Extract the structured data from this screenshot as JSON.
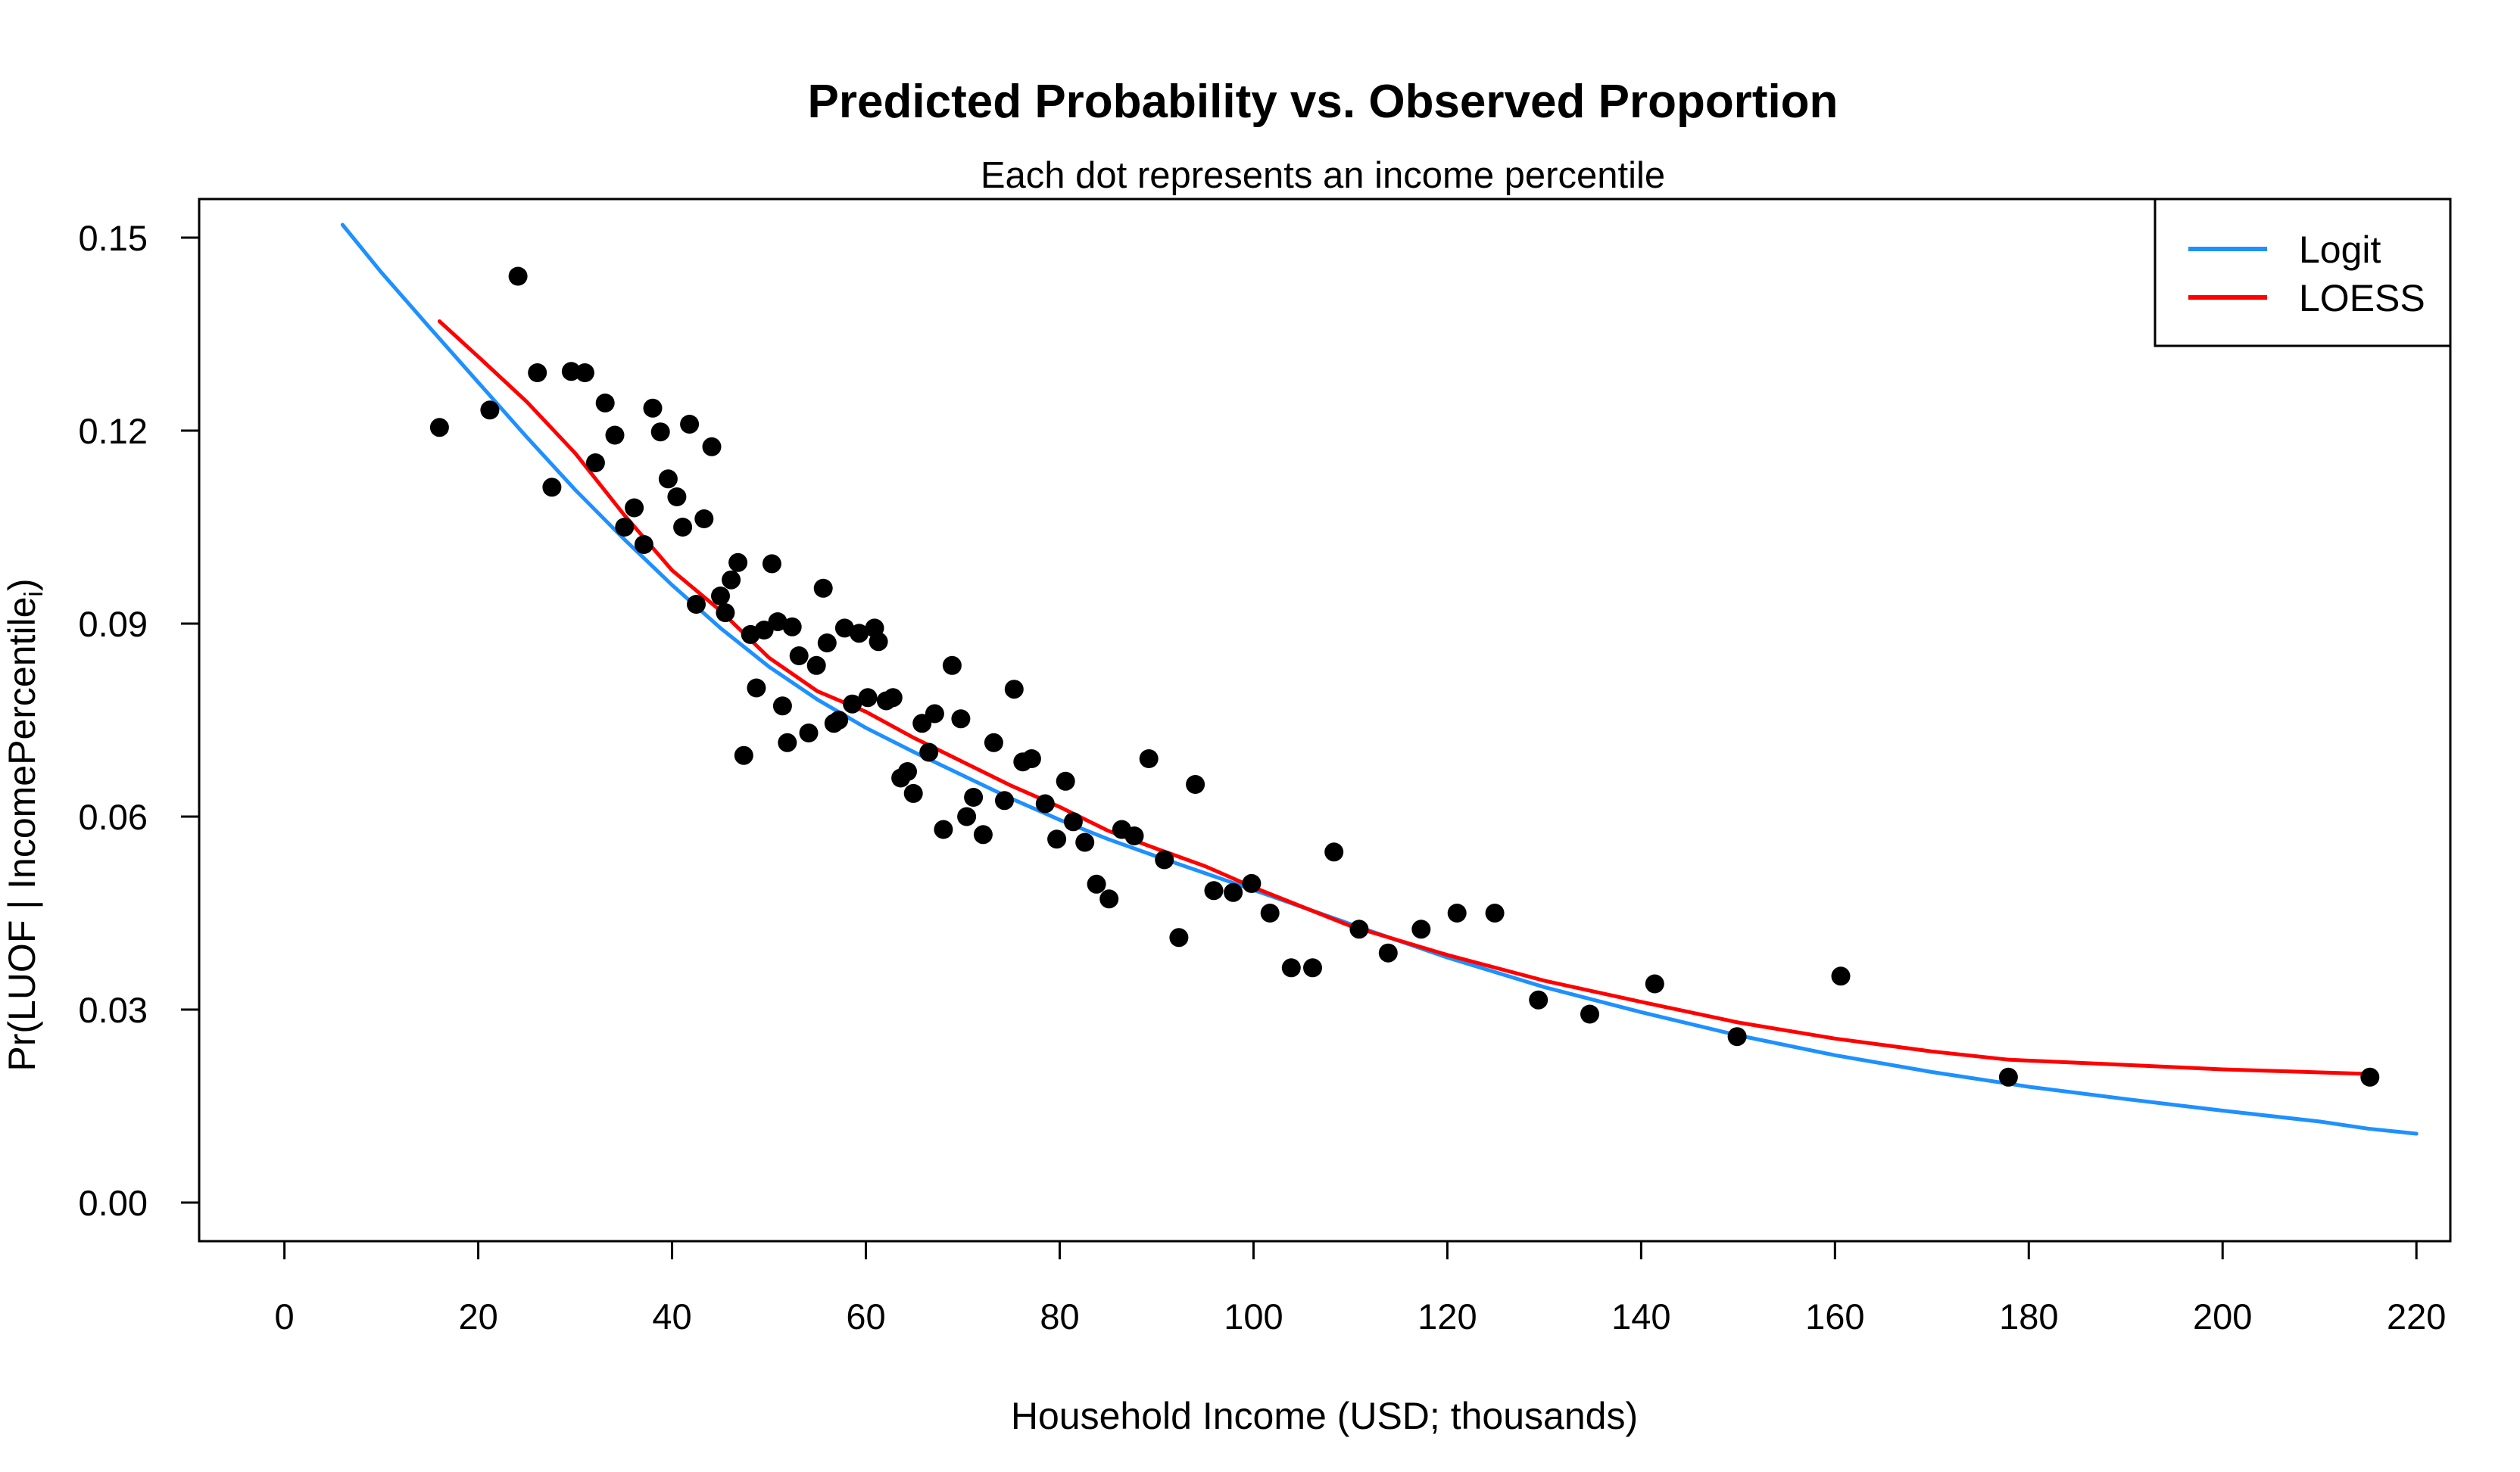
{
  "chart_data": {
    "type": "scatter",
    "title": "Predicted Probability vs. Observed Proportion",
    "subtitle": "Each dot represents an income percentile",
    "xlabel": "Household Income (USD; thousands)",
    "ylabel_main": "Pr(LUOF | IncomePercentile",
    "ylabel_sub": "i",
    "ylabel_close": ")",
    "xlim": [
      -8.8,
      223.5
    ],
    "ylim": [
      -0.006,
      0.156
    ],
    "xticks": [
      0,
      20,
      40,
      60,
      80,
      100,
      120,
      140,
      160,
      180,
      200,
      220
    ],
    "yticks": [
      0.0,
      0.03,
      0.06,
      0.09,
      0.12,
      0.15
    ],
    "ytick_labels": [
      "0.00",
      "0.03",
      "0.06",
      "0.09",
      "0.12",
      "0.15"
    ],
    "legend": {
      "position": "top-right",
      "entries": [
        {
          "label": "Logit",
          "color": "#1E90FF"
        },
        {
          "label": "LOESS",
          "color": "#FF0000"
        }
      ]
    },
    "points": [
      [
        16.0,
        0.1205
      ],
      [
        21.2,
        0.1232
      ],
      [
        24.1,
        0.144
      ],
      [
        26.1,
        0.129
      ],
      [
        27.6,
        0.1112
      ],
      [
        29.6,
        0.1292
      ],
      [
        31.0,
        0.129
      ],
      [
        32.1,
        0.115
      ],
      [
        33.1,
        0.1243
      ],
      [
        34.1,
        0.1193
      ],
      [
        35.1,
        0.105
      ],
      [
        36.1,
        0.108
      ],
      [
        37.1,
        0.1023
      ],
      [
        38.0,
        0.1235
      ],
      [
        38.8,
        0.1198
      ],
      [
        39.6,
        0.1125
      ],
      [
        40.5,
        0.1097
      ],
      [
        41.1,
        0.105
      ],
      [
        41.8,
        0.121
      ],
      [
        42.5,
        0.093
      ],
      [
        43.3,
        0.1063
      ],
      [
        44.1,
        0.1175
      ],
      [
        45.0,
        0.0943
      ],
      [
        45.5,
        0.0917
      ],
      [
        46.1,
        0.0968
      ],
      [
        46.8,
        0.0995
      ],
      [
        47.4,
        0.0695
      ],
      [
        48.1,
        0.0883
      ],
      [
        48.7,
        0.08
      ],
      [
        49.5,
        0.089
      ],
      [
        50.3,
        0.0993
      ],
      [
        50.9,
        0.0903
      ],
      [
        51.4,
        0.0772
      ],
      [
        51.9,
        0.0715
      ],
      [
        52.4,
        0.0895
      ],
      [
        53.1,
        0.085
      ],
      [
        54.1,
        0.073
      ],
      [
        54.9,
        0.0835
      ],
      [
        55.6,
        0.0955
      ],
      [
        56.0,
        0.087
      ],
      [
        56.7,
        0.0745
      ],
      [
        57.2,
        0.075
      ],
      [
        57.8,
        0.0893
      ],
      [
        58.6,
        0.0775
      ],
      [
        59.3,
        0.0885
      ],
      [
        60.2,
        0.0785
      ],
      [
        60.9,
        0.0893
      ],
      [
        61.3,
        0.0872
      ],
      [
        62.1,
        0.078
      ],
      [
        62.8,
        0.0785
      ],
      [
        63.6,
        0.066
      ],
      [
        64.3,
        0.067
      ],
      [
        64.9,
        0.0636
      ],
      [
        65.8,
        0.0745
      ],
      [
        66.5,
        0.07
      ],
      [
        67.1,
        0.076
      ],
      [
        68.0,
        0.058
      ],
      [
        68.9,
        0.0835
      ],
      [
        69.8,
        0.0752
      ],
      [
        70.4,
        0.06
      ],
      [
        71.1,
        0.063
      ],
      [
        72.1,
        0.0572
      ],
      [
        73.2,
        0.0715
      ],
      [
        74.3,
        0.0625
      ],
      [
        75.3,
        0.0798
      ],
      [
        76.2,
        0.0685
      ],
      [
        77.1,
        0.069
      ],
      [
        78.5,
        0.062
      ],
      [
        79.7,
        0.0565
      ],
      [
        80.6,
        0.0655
      ],
      [
        81.4,
        0.0592
      ],
      [
        82.6,
        0.056
      ],
      [
        83.8,
        0.0495
      ],
      [
        85.1,
        0.0472
      ],
      [
        86.4,
        0.058
      ],
      [
        87.7,
        0.057
      ],
      [
        89.2,
        0.069
      ],
      [
        90.8,
        0.0533
      ],
      [
        92.3,
        0.0412
      ],
      [
        94.0,
        0.065
      ],
      [
        95.9,
        0.0485
      ],
      [
        97.9,
        0.0482
      ],
      [
        99.8,
        0.0496
      ],
      [
        101.7,
        0.045
      ],
      [
        103.9,
        0.0365
      ],
      [
        106.1,
        0.0365
      ],
      [
        108.3,
        0.0545
      ],
      [
        110.9,
        0.0425
      ],
      [
        113.9,
        0.0388
      ],
      [
        117.3,
        0.0425
      ],
      [
        121.0,
        0.045
      ],
      [
        124.9,
        0.045
      ],
      [
        129.4,
        0.0315
      ],
      [
        134.7,
        0.0293
      ],
      [
        141.4,
        0.034
      ],
      [
        149.9,
        0.0258
      ],
      [
        160.6,
        0.0352
      ],
      [
        177.9,
        0.0195
      ],
      [
        215.2,
        0.0195
      ]
    ],
    "series": [
      {
        "name": "Logit",
        "color": "#1E90FF",
        "x": [
          6,
          10,
          15,
          20,
          25,
          30,
          35,
          40,
          45,
          50,
          55,
          60,
          65,
          70,
          75,
          80,
          85,
          90,
          95,
          100,
          110,
          120,
          130,
          140,
          150,
          160,
          170,
          180,
          190,
          200,
          210,
          215,
          220
        ],
        "y": [
          0.152,
          0.1446,
          0.136,
          0.1275,
          0.119,
          0.1108,
          0.1032,
          0.096,
          0.0893,
          0.0833,
          0.0782,
          0.0738,
          0.07,
          0.0664,
          0.0628,
          0.0595,
          0.0565,
          0.0538,
          0.0512,
          0.0486,
          0.0433,
          0.0381,
          0.0335,
          0.0296,
          0.026,
          0.0229,
          0.0203,
          0.018,
          0.0161,
          0.0143,
          0.0126,
          0.0115,
          0.0107
        ]
      },
      {
        "name": "LOESS",
        "color": "#FF0000",
        "x": [
          16,
          20,
          25,
          30,
          35,
          40,
          45,
          50,
          55,
          60,
          65,
          70,
          75,
          80,
          85,
          90,
          95,
          100,
          110,
          120,
          130,
          140,
          150,
          160,
          170,
          178,
          190,
          200,
          215
        ],
        "y": [
          0.137,
          0.1315,
          0.1245,
          0.1165,
          0.107,
          0.0983,
          0.092,
          0.0847,
          0.0795,
          0.0763,
          0.0722,
          0.0685,
          0.0648,
          0.0615,
          0.0578,
          0.055,
          0.0523,
          0.049,
          0.043,
          0.0385,
          0.0345,
          0.0312,
          0.028,
          0.0255,
          0.0235,
          0.0222,
          0.0214,
          0.0207,
          0.02
        ]
      }
    ]
  }
}
